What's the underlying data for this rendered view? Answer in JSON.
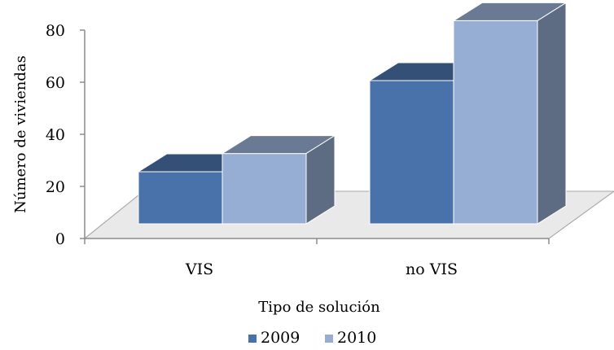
{
  "chart_data": {
    "type": "bar",
    "style": "3d-clustered-column",
    "categories": [
      "VIS",
      "no VIS"
    ],
    "series": [
      {
        "name": "2009",
        "values": [
          20,
          55
        ],
        "color": "#4a72aa"
      },
      {
        "name": "2010",
        "values": [
          27,
          78
        ],
        "color": "#97aed4"
      }
    ],
    "xlabel": "Tipo de solución",
    "ylabel": "Número de viviendas",
    "ylim": [
      0,
      80
    ],
    "yticks": [
      "0",
      "20",
      "40",
      "60",
      "80"
    ],
    "grid": false,
    "legend_position": "bottom"
  }
}
